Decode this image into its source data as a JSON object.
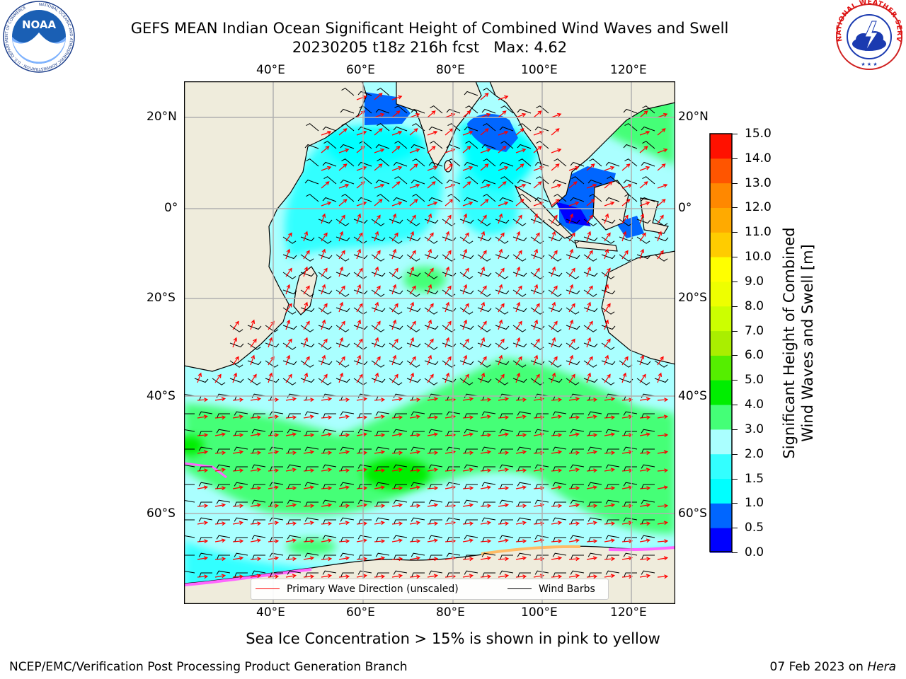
{
  "title": {
    "line1": "GEFS MEAN Indian Ocean Significant Height of Combined Wind Waves and Swell",
    "line2": "20230205 t18z 216h fcst   Max: 4.62"
  },
  "logos": {
    "noaa_text": "NOAA",
    "noaa_ring_text": "NATIONAL OCEANIC AND ATMOSPHERIC ADMINISTRATION · U.S. DEPARTMENT OF COMMERCE",
    "nws_ring_text": "NATIONAL WEATHER SERVICE"
  },
  "map": {
    "lon_ticks": [
      "40°E",
      "60°E",
      "80°E",
      "100°E",
      "120°E"
    ],
    "lat_ticks": [
      "20°N",
      "0°",
      "20°S",
      "40°S",
      "60°S"
    ],
    "land_color": "#efecdc",
    "wave_direction_color": "#ff0000",
    "wind_barb_color": "#000000"
  },
  "legend": {
    "wave_direction": "Primary Wave Direction (unscaled)",
    "wind_barbs": "Wind Barbs"
  },
  "colorbar": {
    "label_line1": "Significant Height of Combined",
    "label_line2": "Wind Waves and Swell [m]",
    "ticks": [
      "0.0",
      "0.5",
      "1.0",
      "1.5",
      "2.0",
      "3.0",
      "4.0",
      "5.0",
      "6.0",
      "7.0",
      "8.0",
      "9.0",
      "10.0",
      "11.0",
      "12.0",
      "13.0",
      "14.0",
      "15.0"
    ],
    "colors": [
      "#0000ff",
      "#0066ff",
      "#00ffff",
      "#33ffff",
      "#aaffff",
      "#44ff77",
      "#00ee00",
      "#55ee00",
      "#aaee00",
      "#ccff00",
      "#eeff00",
      "#ffff00",
      "#ffcc00",
      "#ffaa00",
      "#ff8800",
      "#ff5500",
      "#ff1100"
    ]
  },
  "caption": "Sea Ice Concentration > 15% is shown in pink to yellow",
  "footer": {
    "left": "NCEP/EMC/Verification Post Processing Product Generation Branch",
    "right_prefix": "07 Feb 2023 on ",
    "right_machine": "Hera"
  }
}
